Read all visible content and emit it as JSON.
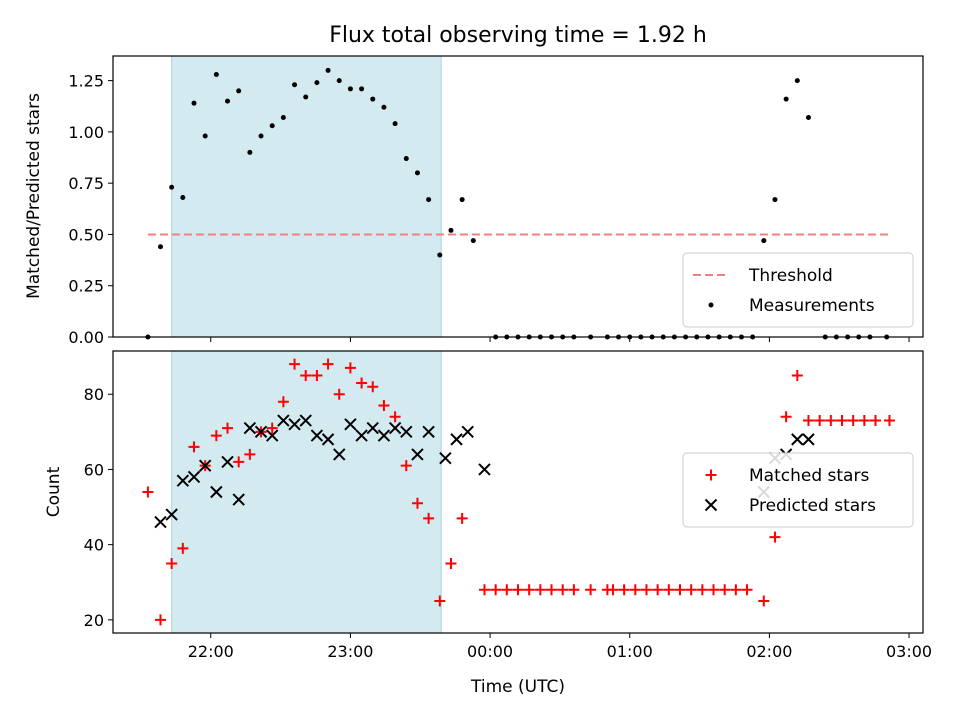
{
  "chart_data": {
    "title": "Flux total observing time = 1.92 h",
    "xlabel": "Time (UTC)",
    "x_unit": "hours since 00:00 UTC",
    "xlim": [
      -2.7,
      3.1
    ],
    "xticks": [
      {
        "value": -2,
        "label": "22:00"
      },
      {
        "value": -1,
        "label": "23:00"
      },
      {
        "value": 0,
        "label": "00:00"
      },
      {
        "value": 1,
        "label": "01:00"
      },
      {
        "value": 2,
        "label": "02:00"
      },
      {
        "value": 3,
        "label": "03:00"
      }
    ],
    "observing_window": {
      "start": -2.28,
      "end": -0.35,
      "color": "#d3eaf1"
    },
    "panels": [
      {
        "type": "scatter",
        "ylabel": "Matched/Predicted stars",
        "ylim": [
          0,
          1.37
        ],
        "yticks": [
          0,
          0.25,
          0.5,
          0.75,
          1.0,
          1.25
        ],
        "ytick_labels": [
          "0.00",
          "0.25",
          "0.50",
          "0.75",
          "1.00",
          "1.25"
        ],
        "legend_position": "bottom-right",
        "threshold": {
          "name": "Threshold",
          "value": 0.5,
          "x_start": -2.45,
          "x_end": 2.87,
          "color": "#f08080"
        },
        "series": [
          {
            "name": "Measurements",
            "marker": "dot",
            "color": "#000000",
            "points": [
              [
                -2.45,
                0.0
              ],
              [
                -2.36,
                0.44
              ],
              [
                -2.28,
                0.73
              ],
              [
                -2.2,
                0.68
              ],
              [
                -2.12,
                1.14
              ],
              [
                -2.04,
                0.98
              ],
              [
                -1.96,
                1.28
              ],
              [
                -1.88,
                1.15
              ],
              [
                -1.8,
                1.2
              ],
              [
                -1.72,
                0.9
              ],
              [
                -1.64,
                0.98
              ],
              [
                -1.56,
                1.03
              ],
              [
                -1.48,
                1.07
              ],
              [
                -1.4,
                1.23
              ],
              [
                -1.32,
                1.17
              ],
              [
                -1.24,
                1.24
              ],
              [
                -1.16,
                1.3
              ],
              [
                -1.08,
                1.25
              ],
              [
                -1.0,
                1.21
              ],
              [
                -0.92,
                1.21
              ],
              [
                -0.84,
                1.16
              ],
              [
                -0.76,
                1.12
              ],
              [
                -0.68,
                1.04
              ],
              [
                -0.6,
                0.87
              ],
              [
                -0.52,
                0.8
              ],
              [
                -0.44,
                0.67
              ],
              [
                -0.36,
                0.4
              ],
              [
                -0.28,
                0.52
              ],
              [
                -0.2,
                0.67
              ],
              [
                -0.12,
                0.47
              ],
              [
                0.04,
                0.0
              ],
              [
                0.12,
                0.0
              ],
              [
                0.2,
                0.0
              ],
              [
                0.28,
                0.0
              ],
              [
                0.36,
                0.0
              ],
              [
                0.44,
                0.0
              ],
              [
                0.52,
                0.0
              ],
              [
                0.6,
                0.0
              ],
              [
                0.72,
                0.0
              ],
              [
                0.84,
                0.0
              ],
              [
                0.92,
                0.0
              ],
              [
                1.0,
                0.0
              ],
              [
                1.08,
                0.0
              ],
              [
                1.16,
                0.0
              ],
              [
                1.24,
                0.0
              ],
              [
                1.32,
                0.0
              ],
              [
                1.4,
                0.0
              ],
              [
                1.48,
                0.0
              ],
              [
                1.56,
                0.0
              ],
              [
                1.64,
                0.0
              ],
              [
                1.72,
                0.0
              ],
              [
                1.8,
                0.0
              ],
              [
                1.88,
                0.0
              ],
              [
                1.96,
                0.47
              ],
              [
                2.04,
                0.67
              ],
              [
                2.12,
                1.16
              ],
              [
                2.2,
                1.25
              ],
              [
                2.28,
                1.07
              ],
              [
                2.4,
                0.0
              ],
              [
                2.48,
                0.0
              ],
              [
                2.56,
                0.0
              ],
              [
                2.64,
                0.0
              ],
              [
                2.72,
                0.0
              ],
              [
                2.84,
                0.0
              ]
            ]
          }
        ]
      },
      {
        "type": "scatter",
        "ylabel": "Count",
        "ylim": [
          16.5,
          91.5
        ],
        "yticks": [
          20,
          40,
          60,
          80
        ],
        "ytick_labels": [
          "20",
          "40",
          "60",
          "80"
        ],
        "legend_position": "center-right",
        "series": [
          {
            "name": "Matched stars",
            "marker": "plus",
            "color": "#ff0000",
            "points": [
              [
                -2.45,
                54
              ],
              [
                -2.36,
                20
              ],
              [
                -2.28,
                35
              ],
              [
                -2.2,
                39
              ],
              [
                -2.12,
                66
              ],
              [
                -2.04,
                61
              ],
              [
                -1.96,
                69
              ],
              [
                -1.88,
                71
              ],
              [
                -1.8,
                62
              ],
              [
                -1.72,
                64
              ],
              [
                -1.64,
                70
              ],
              [
                -1.56,
                71
              ],
              [
                -1.48,
                78
              ],
              [
                -1.4,
                88
              ],
              [
                -1.32,
                85
              ],
              [
                -1.24,
                85
              ],
              [
                -1.16,
                88
              ],
              [
                -1.08,
                80
              ],
              [
                -1.0,
                87
              ],
              [
                -0.92,
                83
              ],
              [
                -0.84,
                82
              ],
              [
                -0.76,
                77
              ],
              [
                -0.68,
                74
              ],
              [
                -0.6,
                61
              ],
              [
                -0.52,
                51
              ],
              [
                -0.44,
                47
              ],
              [
                -0.36,
                25
              ],
              [
                -0.28,
                35
              ],
              [
                -0.2,
                47
              ],
              [
                -0.04,
                28
              ],
              [
                0.04,
                28
              ],
              [
                0.12,
                28
              ],
              [
                0.2,
                28
              ],
              [
                0.28,
                28
              ],
              [
                0.36,
                28
              ],
              [
                0.44,
                28
              ],
              [
                0.52,
                28
              ],
              [
                0.6,
                28
              ],
              [
                0.72,
                28
              ],
              [
                0.84,
                28
              ],
              [
                0.88,
                28
              ],
              [
                0.96,
                28
              ],
              [
                1.04,
                28
              ],
              [
                1.12,
                28
              ],
              [
                1.2,
                28
              ],
              [
                1.28,
                28
              ],
              [
                1.36,
                28
              ],
              [
                1.44,
                28
              ],
              [
                1.52,
                28
              ],
              [
                1.6,
                28
              ],
              [
                1.68,
                28
              ],
              [
                1.76,
                28
              ],
              [
                1.84,
                28
              ],
              [
                1.96,
                25
              ],
              [
                2.04,
                42
              ],
              [
                2.12,
                74
              ],
              [
                2.2,
                85
              ],
              [
                2.28,
                73
              ],
              [
                2.36,
                73
              ],
              [
                2.44,
                73
              ],
              [
                2.52,
                73
              ],
              [
                2.6,
                73
              ],
              [
                2.68,
                73
              ],
              [
                2.76,
                73
              ],
              [
                2.86,
                73
              ]
            ]
          },
          {
            "name": "Predicted stars",
            "marker": "x",
            "color": "#000000",
            "points": [
              [
                -2.36,
                46
              ],
              [
                -2.28,
                48
              ],
              [
                -2.2,
                57
              ],
              [
                -2.12,
                58
              ],
              [
                -2.04,
                61
              ],
              [
                -1.96,
                54
              ],
              [
                -1.88,
                62
              ],
              [
                -1.8,
                52
              ],
              [
                -1.72,
                71
              ],
              [
                -1.64,
                70
              ],
              [
                -1.56,
                69
              ],
              [
                -1.48,
                73
              ],
              [
                -1.4,
                72
              ],
              [
                -1.32,
                73
              ],
              [
                -1.24,
                69
              ],
              [
                -1.16,
                68
              ],
              [
                -1.08,
                64
              ],
              [
                -1.0,
                72
              ],
              [
                -0.92,
                69
              ],
              [
                -0.84,
                71
              ],
              [
                -0.76,
                69
              ],
              [
                -0.68,
                71
              ],
              [
                -0.6,
                70
              ],
              [
                -0.52,
                64
              ],
              [
                -0.44,
                70
              ],
              [
                -0.32,
                63
              ],
              [
                -0.24,
                68
              ],
              [
                -0.16,
                70
              ],
              [
                -0.04,
                60
              ],
              [
                1.96,
                54
              ],
              [
                2.04,
                63
              ],
              [
                2.12,
                64
              ],
              [
                2.2,
                68
              ],
              [
                2.28,
                68
              ]
            ]
          }
        ]
      }
    ]
  }
}
